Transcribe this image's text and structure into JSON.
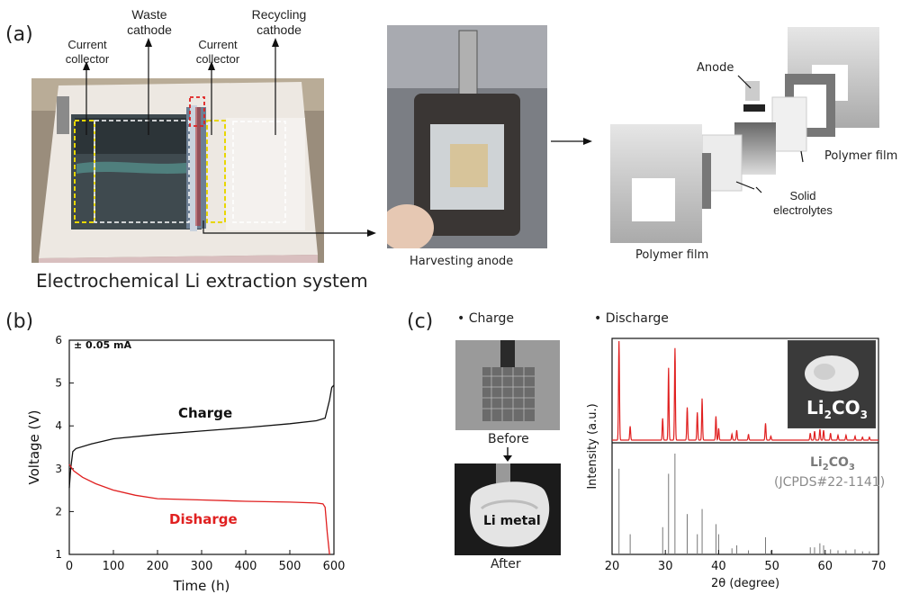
{
  "panel_a": {
    "label": "(a)",
    "labels": {
      "current_collector_left": "Current collector",
      "waste_cathode": "Waste cathode",
      "current_collector_mid": "Current collector",
      "recycling_cathode": "Recycling cathode"
    },
    "system_caption": "Electrochemical Li extraction system",
    "harvest_caption": "Harvesting anode",
    "diagram": {
      "anode": "Anode",
      "polymer_film_top": "Polymer film",
      "polymer_film_bottom": "Polymer film",
      "solid_electrolytes": "Solid electrolytes"
    }
  },
  "panel_b": {
    "label": "(b)",
    "annotation": "± 0.05 mA",
    "charge_label": "Charge",
    "discharge_label": "Disharge",
    "colors": {
      "charge": "#111111",
      "discharge": "#e02020"
    }
  },
  "panel_c": {
    "label": "(c)",
    "bullet_charge": "Charge",
    "bullet_discharge": "Discharge",
    "before": "Before",
    "after": "After",
    "li_metal": "Li metal",
    "inset_formula": {
      "main": "Li",
      "sub": "2",
      "tail": "CO",
      "sub2": "3"
    },
    "ref_formula": {
      "main": "Li",
      "sub": "2",
      "tail": "CO",
      "sub2": "3"
    },
    "ref_card": "(JCPDS#22-1141)",
    "colors": {
      "xrd": "#e02020",
      "ref": "#777777"
    }
  },
  "chart_data": [
    {
      "type": "line",
      "xlabel": "Time (h)",
      "ylabel": "Voltage (V)",
      "xlim": [
        0,
        600
      ],
      "ylim": [
        1,
        6
      ],
      "xticks": [
        "0",
        "100",
        "200",
        "300",
        "400",
        "500",
        "600"
      ],
      "yticks": [
        "1",
        "2",
        "3",
        "4",
        "5",
        "6"
      ],
      "series": [
        {
          "name": "Charge",
          "x": [
            0,
            3,
            8,
            15,
            50,
            100,
            200,
            300,
            400,
            500,
            560,
            580,
            590,
            595,
            600
          ],
          "y": [
            2.55,
            3.0,
            3.4,
            3.47,
            3.58,
            3.7,
            3.8,
            3.88,
            3.96,
            4.05,
            4.12,
            4.18,
            4.6,
            4.9,
            4.95
          ]
        },
        {
          "name": "Disharge",
          "x": [
            0,
            10,
            30,
            60,
            100,
            150,
            200,
            300,
            400,
            500,
            560,
            575,
            580,
            585,
            590
          ],
          "y": [
            3.1,
            2.95,
            2.8,
            2.65,
            2.5,
            2.38,
            2.3,
            2.27,
            2.24,
            2.22,
            2.2,
            2.18,
            2.1,
            1.5,
            1.0
          ]
        }
      ]
    },
    {
      "type": "bar",
      "xlabel": "2θ (degree)",
      "ylabel": "Intensity (a.u.)",
      "xlim": [
        20,
        70
      ],
      "xticks": [
        "20",
        "30",
        "40",
        "50",
        "60",
        "70"
      ],
      "peaks": [
        {
          "x": 21.3,
          "exp": 1.0,
          "ref": 0.85
        },
        {
          "x": 23.4,
          "exp": 0.14,
          "ref": 0.2
        },
        {
          "x": 29.5,
          "exp": 0.22,
          "ref": 0.27
        },
        {
          "x": 30.6,
          "exp": 0.73,
          "ref": 0.8
        },
        {
          "x": 31.8,
          "exp": 0.93,
          "ref": 1.0
        },
        {
          "x": 34.1,
          "exp": 0.33,
          "ref": 0.4
        },
        {
          "x": 36.0,
          "exp": 0.28,
          "ref": 0.2
        },
        {
          "x": 36.9,
          "exp": 0.42,
          "ref": 0.45
        },
        {
          "x": 39.5,
          "exp": 0.24,
          "ref": 0.3
        },
        {
          "x": 40.0,
          "exp": 0.12,
          "ref": 0.2
        },
        {
          "x": 42.5,
          "exp": 0.06,
          "ref": 0.06
        },
        {
          "x": 43.4,
          "exp": 0.1,
          "ref": 0.09
        },
        {
          "x": 45.6,
          "exp": 0.06,
          "ref": 0.04
        },
        {
          "x": 48.8,
          "exp": 0.17,
          "ref": 0.17
        },
        {
          "x": 49.8,
          "exp": 0.04,
          "ref": 0.04
        },
        {
          "x": 57.2,
          "exp": 0.07,
          "ref": 0.07
        },
        {
          "x": 58.0,
          "exp": 0.09,
          "ref": 0.07
        },
        {
          "x": 59.0,
          "exp": 0.11,
          "ref": 0.11
        },
        {
          "x": 59.7,
          "exp": 0.1,
          "ref": 0.09
        },
        {
          "x": 61.0,
          "exp": 0.07,
          "ref": 0.05
        },
        {
          "x": 62.4,
          "exp": 0.05,
          "ref": 0.04
        },
        {
          "x": 63.9,
          "exp": 0.05,
          "ref": 0.04
        },
        {
          "x": 65.6,
          "exp": 0.04,
          "ref": 0.05
        },
        {
          "x": 67.0,
          "exp": 0.03,
          "ref": 0.03
        },
        {
          "x": 68.3,
          "exp": 0.03,
          "ref": 0.03
        }
      ]
    }
  ]
}
